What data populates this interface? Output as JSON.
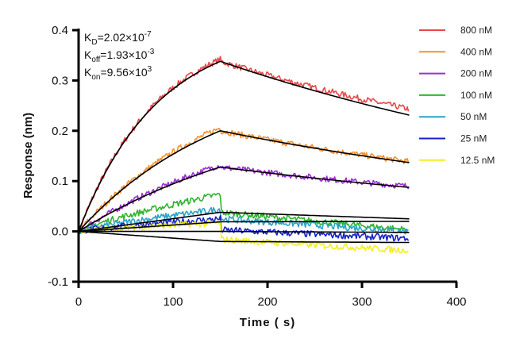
{
  "chart_data": {
    "type": "line",
    "title": "",
    "xlabel": "Time ( s)",
    "ylabel": "Response (nm)",
    "xlim": [
      0,
      400
    ],
    "ylim": [
      -0.1,
      0.4
    ],
    "xticks": [
      0,
      100,
      200,
      300,
      400
    ],
    "xtick_labels": [
      "0",
      "100",
      "200",
      "300",
      "400"
    ],
    "yticks": [
      -0.1,
      0.0,
      0.1,
      0.2,
      0.3,
      0.4
    ],
    "ytick_labels": [
      "-0.1",
      "0.0",
      "0.1",
      "0.2",
      "0.3",
      "0.4"
    ],
    "grid": false,
    "legend_position": "top-right",
    "association_end_s": 150,
    "dissociation_end_s": 350,
    "annotations": [
      {
        "name": "kd",
        "base": "K",
        "sub": "D",
        "text": "=2.02×10",
        "sup": "-7"
      },
      {
        "name": "koff",
        "base": "K",
        "sub": "off",
        "text": "=1.93×10",
        "sup": "-3"
      },
      {
        "name": "kon",
        "base": "K",
        "sub": "on",
        "text": "=9.56×10",
        "sup": "3"
      }
    ],
    "fit_color": "#000000",
    "series": [
      {
        "name": "800 nM",
        "color": "#e8474b",
        "peak": 0.338,
        "kobs": 0.012,
        "koff": 0.0019,
        "data_offset_assoc": 0.004,
        "data_offset_dissoc": 0.012,
        "end_value": 0.244,
        "fit_values": {
          "t": [
            0,
            50,
            100,
            150,
            350
          ],
          "y": [
            0.0,
            0.183,
            0.283,
            0.338,
            0.231
          ]
        }
      },
      {
        "name": "400 nM",
        "color": "#f39230",
        "peak": 0.2,
        "kobs": 0.0065,
        "koff": 0.0019,
        "data_offset_assoc": 0.006,
        "data_offset_dissoc": 0.002,
        "end_value": 0.135,
        "fit_values": {
          "t": [
            0,
            50,
            100,
            150,
            350
          ],
          "y": [
            0.0,
            0.089,
            0.153,
            0.2,
            0.136
          ]
        }
      },
      {
        "name": "200 nM",
        "color": "#9b2fcf",
        "peak": 0.128,
        "kobs": 0.0045,
        "koff": 0.0019,
        "data_offset_assoc": 0.004,
        "data_offset_dissoc": 0.002,
        "end_value": 0.087,
        "fit_values": {
          "t": [
            0,
            50,
            100,
            150,
            350
          ],
          "y": [
            0.0,
            0.052,
            0.095,
            0.128,
            0.087
          ]
        }
      },
      {
        "name": "100 nM",
        "color": "#2fb52f",
        "peak": 0.038,
        "kobs": 0.001,
        "koff": 0.0019,
        "data_assoc_peak": 0.074,
        "data_dissoc_start": 0.038,
        "end_value": 0.003,
        "fit_values": {
          "t": [
            0,
            150,
            350
          ],
          "y": [
            0.0,
            0.038,
            0.025
          ]
        }
      },
      {
        "name": "50 nM",
        "color": "#2aa4c6",
        "peak": 0.019,
        "kobs": 0.001,
        "koff": 0.0015,
        "data_assoc_peak": 0.044,
        "data_dissoc_start": 0.025,
        "end_value": 0.0,
        "fit_values": {
          "t": [
            0,
            150,
            350
          ],
          "y": [
            0.0,
            0.019,
            0.02
          ]
        }
      },
      {
        "name": "25 nM",
        "color": "#1420c8",
        "peak": 0.0,
        "kobs": 0.001,
        "koff": 0.0,
        "data_assoc_peak": 0.025,
        "data_dissoc_start": 0.003,
        "end_value": -0.014,
        "fit_values": {
          "t": [
            0,
            150,
            350
          ],
          "y": [
            0.0,
            0.0,
            -0.002
          ]
        }
      },
      {
        "name": "12.5 nM",
        "color": "#f5ee1e",
        "peak": -0.02,
        "kobs": 0.001,
        "koff": 0.0,
        "data_assoc_peak": 0.017,
        "data_dissoc_start": -0.016,
        "end_value": -0.038,
        "fit_values": {
          "t": [
            0,
            150,
            350
          ],
          "y": [
            0.0,
            -0.02,
            -0.022
          ]
        }
      }
    ]
  }
}
